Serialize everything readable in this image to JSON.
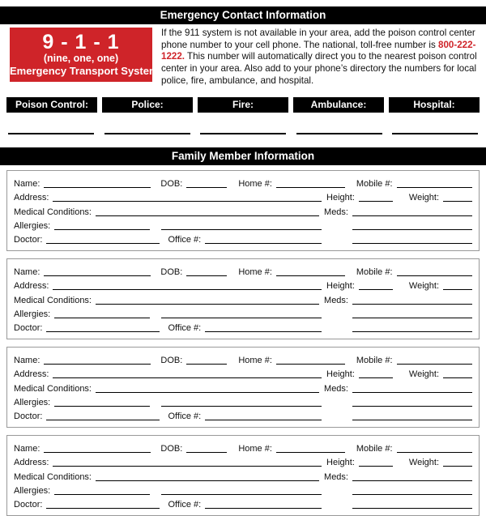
{
  "header": {
    "title": "Emergency Contact Information"
  },
  "emergency_box": {
    "number": "9 - 1 - 1",
    "subtitle": "(nine, one, one)",
    "caption": "Emergency Transport System",
    "bg_color": "#cf2429"
  },
  "intro": {
    "text_before": "If the 911 system is not available in your area, add the poison control center phone number to your cell phone. The national, toll-free number is ",
    "phone": "800-222-1222.",
    "text_after": " This number will automatically direct you to the nearest poison control center in your area. Also add to your phone’s directory the numbers for local police, fire, ambulance, and hospital.",
    "phone_color": "#cf2429"
  },
  "contacts": {
    "labels": [
      "Poison Control:",
      "Police:",
      "Fire:",
      "Ambulance:",
      "Hospital:"
    ]
  },
  "family_section": {
    "title": "Family Member Information",
    "member_count": 4,
    "field_labels": {
      "name": "Name:",
      "dob": "DOB:",
      "home": "Home #:",
      "mobile": "Mobile #:",
      "address": "Address:",
      "height": "Height:",
      "weight": "Weight:",
      "medical": "Medical Conditions:",
      "meds": "Meds:",
      "allergies": "Allergies:",
      "doctor": "Doctor:",
      "office": "Office #:"
    }
  }
}
